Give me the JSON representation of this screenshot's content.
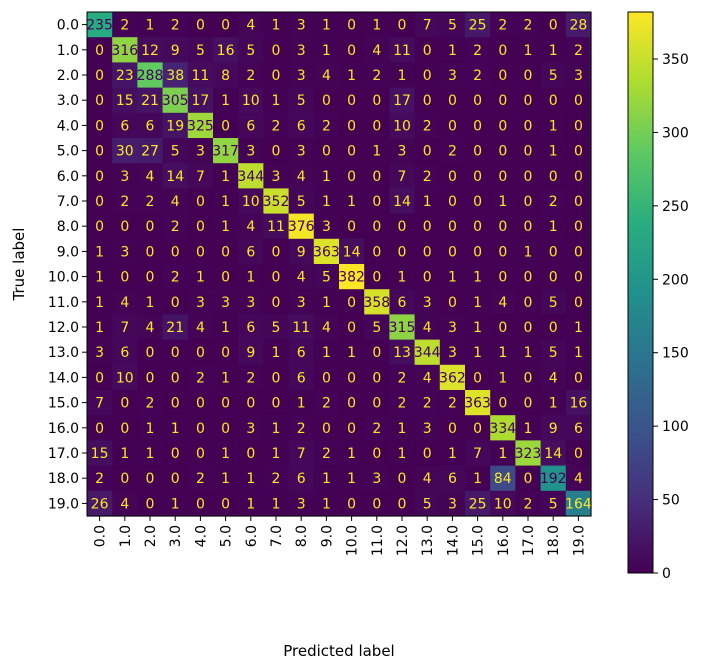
{
  "chart_data": {
    "type": "heatmap",
    "title": "",
    "xlabel": "Predicted label",
    "ylabel": "True label",
    "x_tick_labels": [
      "0.0",
      "1.0",
      "2.0",
      "3.0",
      "4.0",
      "5.0",
      "6.0",
      "7.0",
      "8.0",
      "9.0",
      "10.0",
      "11.0",
      "12.0",
      "13.0",
      "14.0",
      "15.0",
      "16.0",
      "17.0",
      "18.0",
      "19.0"
    ],
    "y_tick_labels": [
      "0.0",
      "1.0",
      "2.0",
      "3.0",
      "4.0",
      "5.0",
      "6.0",
      "7.0",
      "8.0",
      "9.0",
      "10.0",
      "11.0",
      "12.0",
      "13.0",
      "14.0",
      "15.0",
      "16.0",
      "17.0",
      "18.0",
      "19.0"
    ],
    "colormap": "viridis",
    "color_range": [
      0,
      382
    ],
    "colorbar_ticks": [
      0,
      50,
      100,
      150,
      200,
      250,
      300,
      350
    ],
    "grid": false,
    "values": [
      [
        235,
        2,
        1,
        2,
        0,
        0,
        4,
        1,
        3,
        1,
        0,
        1,
        0,
        7,
        5,
        25,
        2,
        2,
        0,
        28
      ],
      [
        0,
        316,
        12,
        9,
        5,
        16,
        5,
        0,
        3,
        1,
        0,
        4,
        11,
        0,
        1,
        2,
        0,
        1,
        1,
        2
      ],
      [
        0,
        23,
        288,
        38,
        11,
        8,
        2,
        0,
        3,
        4,
        1,
        2,
        1,
        0,
        3,
        2,
        0,
        0,
        5,
        3
      ],
      [
        0,
        15,
        21,
        305,
        17,
        1,
        10,
        1,
        5,
        0,
        0,
        0,
        17,
        0,
        0,
        0,
        0,
        0,
        0,
        0
      ],
      [
        0,
        6,
        6,
        19,
        325,
        0,
        6,
        2,
        6,
        2,
        0,
        0,
        10,
        2,
        0,
        0,
        0,
        0,
        1,
        0
      ],
      [
        0,
        30,
        27,
        5,
        3,
        317,
        3,
        0,
        3,
        0,
        0,
        1,
        3,
        0,
        2,
        0,
        0,
        0,
        1,
        0
      ],
      [
        0,
        3,
        4,
        14,
        7,
        1,
        344,
        3,
        4,
        1,
        0,
        0,
        7,
        2,
        0,
        0,
        0,
        0,
        0,
        0
      ],
      [
        0,
        2,
        2,
        4,
        0,
        1,
        10,
        352,
        5,
        1,
        1,
        0,
        14,
        1,
        0,
        0,
        1,
        0,
        2,
        0
      ],
      [
        0,
        0,
        0,
        2,
        0,
        1,
        4,
        11,
        376,
        3,
        0,
        0,
        0,
        0,
        0,
        0,
        0,
        0,
        1,
        0
      ],
      [
        1,
        3,
        0,
        0,
        0,
        0,
        6,
        0,
        9,
        363,
        14,
        0,
        0,
        0,
        0,
        0,
        0,
        1,
        0,
        0
      ],
      [
        1,
        0,
        0,
        2,
        1,
        0,
        1,
        0,
        4,
        5,
        382,
        0,
        1,
        0,
        1,
        1,
        0,
        0,
        0,
        0
      ],
      [
        1,
        4,
        1,
        0,
        3,
        3,
        3,
        0,
        3,
        1,
        0,
        358,
        6,
        3,
        0,
        1,
        4,
        0,
        5,
        0
      ],
      [
        1,
        7,
        4,
        21,
        4,
        1,
        6,
        5,
        11,
        4,
        0,
        5,
        315,
        4,
        3,
        1,
        0,
        0,
        0,
        1
      ],
      [
        3,
        6,
        0,
        0,
        0,
        0,
        9,
        1,
        6,
        1,
        1,
        0,
        13,
        344,
        3,
        1,
        1,
        1,
        5,
        1
      ],
      [
        0,
        10,
        0,
        0,
        2,
        1,
        2,
        0,
        6,
        0,
        0,
        0,
        2,
        4,
        362,
        0,
        1,
        0,
        4,
        0
      ],
      [
        7,
        0,
        2,
        0,
        0,
        0,
        0,
        0,
        1,
        2,
        0,
        0,
        2,
        2,
        2,
        363,
        0,
        0,
        1,
        16
      ],
      [
        0,
        0,
        1,
        1,
        0,
        0,
        3,
        1,
        2,
        0,
        0,
        2,
        1,
        3,
        0,
        0,
        334,
        1,
        9,
        6
      ],
      [
        15,
        1,
        1,
        0,
        0,
        1,
        0,
        1,
        7,
        2,
        1,
        0,
        1,
        0,
        1,
        7,
        1,
        323,
        14,
        0
      ],
      [
        2,
        0,
        0,
        0,
        2,
        1,
        1,
        2,
        6,
        1,
        1,
        3,
        0,
        4,
        6,
        1,
        84,
        0,
        192,
        4
      ],
      [
        26,
        4,
        0,
        1,
        0,
        0,
        1,
        1,
        3,
        1,
        0,
        0,
        0,
        5,
        3,
        25,
        10,
        2,
        5,
        164
      ]
    ]
  }
}
